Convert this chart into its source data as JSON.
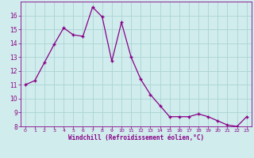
{
  "x": [
    0,
    1,
    2,
    3,
    4,
    5,
    6,
    7,
    8,
    9,
    10,
    11,
    12,
    13,
    14,
    15,
    16,
    17,
    18,
    19,
    20,
    21,
    22,
    23
  ],
  "y": [
    11.0,
    11.3,
    12.6,
    13.9,
    15.1,
    14.6,
    14.5,
    16.6,
    15.9,
    12.7,
    15.5,
    13.0,
    11.4,
    10.3,
    9.5,
    8.7,
    8.7,
    8.7,
    8.9,
    8.7,
    8.4,
    8.1,
    8.0,
    8.7
  ],
  "xlabel": "Windchill (Refroidissement éolien,°C)",
  "ylim": [
    8,
    17
  ],
  "xlim": [
    -0.5,
    23.5
  ],
  "yticks": [
    8,
    9,
    10,
    11,
    12,
    13,
    14,
    15,
    16
  ],
  "xticks": [
    0,
    1,
    2,
    3,
    4,
    5,
    6,
    7,
    8,
    9,
    10,
    11,
    12,
    13,
    14,
    15,
    16,
    17,
    18,
    19,
    20,
    21,
    22,
    23
  ],
  "line_color": "#880088",
  "marker": "+",
  "bg_color": "#d0ecec",
  "grid_color": "#aad4d4",
  "label_color": "#880088",
  "tick_color": "#880088"
}
